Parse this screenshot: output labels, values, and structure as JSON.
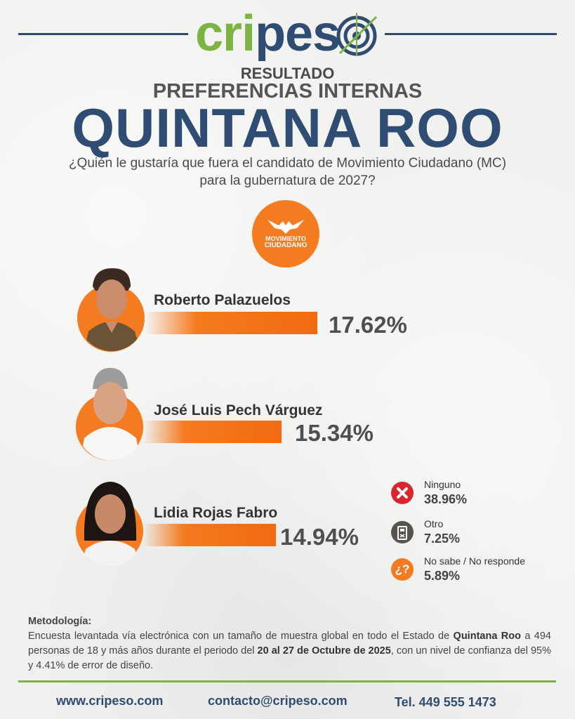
{
  "brand": {
    "logo_g": "cri",
    "logo_b": "pes",
    "logo_o": "o"
  },
  "header": {
    "result": "RESULTADO",
    "subtitle": "PREFERENCIAS INTERNAS",
    "state": "QUINTANA ROO",
    "question_line1": "¿Quién le gustaría que fuera el candidato de Movimiento Ciudadano (MC)",
    "question_line2": "para la gubernatura de 2027?"
  },
  "party": {
    "line1": "MOVIMIENTO",
    "line2": "CIUDADANO"
  },
  "colors": {
    "accent": "#f47b20",
    "brand_blue": "#2f4c72",
    "brand_green": "#7cb342",
    "red": "#d9262e",
    "grey": "#5a5250"
  },
  "chart_data": {
    "type": "bar",
    "title": "",
    "xlabel": "",
    "ylabel": "",
    "categories": [
      "Roberto Palazuelos",
      "José Luis Pech Várguez",
      "Lidia Rojas Fabro"
    ],
    "values": [
      17.62,
      15.34,
      14.94
    ],
    "value_labels": [
      "17.62%",
      "15.34%",
      "14.94%"
    ],
    "other": [
      {
        "label": "Ninguno",
        "value": 38.96,
        "value_label": "38.96%",
        "icon": "x-icon"
      },
      {
        "label": "Otro",
        "value": 7.25,
        "value_label": "7.25%",
        "icon": "ballot-box-icon"
      },
      {
        "label": "No sabe / No responde",
        "value": 5.89,
        "value_label": "5.89%",
        "icon": "question-icon"
      }
    ]
  },
  "methodology": {
    "title": "Metodología:",
    "t1": "Encuesta levantada vía electrónica con un tamaño de muestra global en todo el Estado de ",
    "b1": "Quintana Roo",
    "t2": " a 494 personas de 18 y más años durante el periodo del ",
    "b2": "20 al 27 de Octubre de 2025",
    "t3": ", con un nivel de confianza del 95% y 4.41% de error de diseño."
  },
  "footer": {
    "web": "www.cripeso.com",
    "email": "contacto@cripeso.com",
    "phone": "Tel. 449 555 1473"
  }
}
